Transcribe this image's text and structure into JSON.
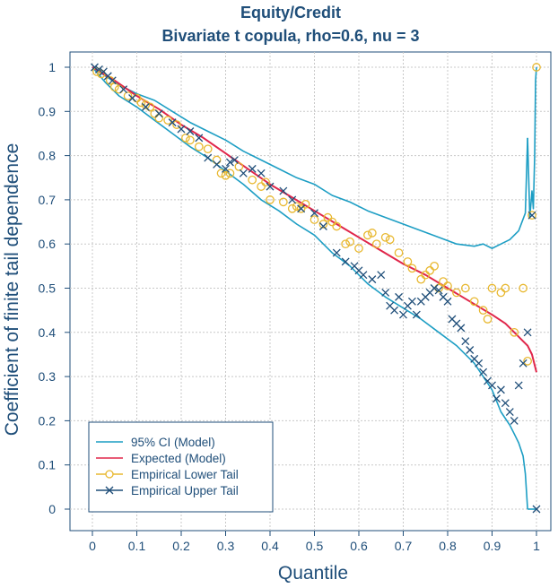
{
  "chart_data": {
    "type": "line",
    "title": "Equity/Credit",
    "subtitle": "Bivariate t copula, rho=0.6, nu = 3",
    "xlabel": "Quantile",
    "ylabel": "Coefficient of finite tail dependence",
    "xlim": [
      0,
      1
    ],
    "ylim": [
      0,
      1
    ],
    "x_ticks": [
      "0",
      "0.1",
      "0.2",
      "0.3",
      "0.4",
      "0.5",
      "0.6",
      "0.7",
      "0.8",
      "0.9",
      "1"
    ],
    "y_ticks": [
      "0",
      "0.1",
      "0.2",
      "0.3",
      "0.4",
      "0.5",
      "0.6",
      "0.7",
      "0.8",
      "0.9",
      "1"
    ],
    "grid": true,
    "legend_position": "bottom-left",
    "colors": {
      "ci": "#1d9ec4",
      "expected": "#e0264a",
      "lower": "#e8b830",
      "upper": "#1f4e79",
      "text": "#1f4e79"
    },
    "series": [
      {
        "name": "95% CI (Model)",
        "kind": "line",
        "color": "#1d9ec4",
        "segments": [
          {
            "x": [
              0.0,
              0.03,
              0.06,
              0.1,
              0.14,
              0.18,
              0.22,
              0.26,
              0.3,
              0.34,
              0.38,
              0.42,
              0.46,
              0.5,
              0.54,
              0.58,
              0.62,
              0.66,
              0.7,
              0.74,
              0.78,
              0.82,
              0.86,
              0.88,
              0.9,
              0.92,
              0.94,
              0.96,
              0.975,
              0.98
            ],
            "y": [
              1.0,
              0.98,
              0.96,
              0.94,
              0.925,
              0.9,
              0.875,
              0.855,
              0.835,
              0.81,
              0.79,
              0.77,
              0.75,
              0.735,
              0.71,
              0.695,
              0.675,
              0.66,
              0.645,
              0.63,
              0.615,
              0.6,
              0.595,
              0.6,
              0.59,
              0.6,
              0.61,
              0.63,
              0.67,
              0.84
            ]
          },
          {
            "x": [
              0.98,
              0.985,
              0.99,
              0.993,
              0.996,
              0.998,
              1.0
            ],
            "y": [
              0.84,
              0.66,
              0.72,
              0.68,
              0.8,
              0.97,
              1.0
            ]
          },
          {
            "x": [
              0.0,
              0.03,
              0.06,
              0.1,
              0.14,
              0.18,
              0.22,
              0.26,
              0.3,
              0.34,
              0.38,
              0.42,
              0.46,
              0.5,
              0.54,
              0.58,
              0.62,
              0.66,
              0.7,
              0.74,
              0.78,
              0.82,
              0.86,
              0.88,
              0.9,
              0.92,
              0.94,
              0.95,
              0.96,
              0.97,
              0.975,
              0.98
            ],
            "y": [
              1.0,
              0.965,
              0.935,
              0.91,
              0.88,
              0.85,
              0.82,
              0.795,
              0.765,
              0.735,
              0.7,
              0.675,
              0.645,
              0.62,
              0.58,
              0.55,
              0.51,
              0.48,
              0.455,
              0.43,
              0.4,
              0.37,
              0.33,
              0.3,
              0.27,
              0.22,
              0.19,
              0.17,
              0.15,
              0.12,
              0.08,
              0.0
            ]
          },
          {
            "x": [
              0.98,
              0.99,
              1.0
            ],
            "y": [
              0.0,
              0.0,
              0.0
            ]
          }
        ]
      },
      {
        "name": "Expected (Model)",
        "kind": "line",
        "color": "#e0264a",
        "x": [
          0.0,
          0.05,
          0.1,
          0.15,
          0.2,
          0.25,
          0.3,
          0.35,
          0.4,
          0.45,
          0.5,
          0.55,
          0.6,
          0.65,
          0.7,
          0.75,
          0.8,
          0.85,
          0.9,
          0.93,
          0.95,
          0.97,
          0.98,
          0.99,
          1.0
        ],
        "y": [
          1.0,
          0.97,
          0.935,
          0.905,
          0.87,
          0.84,
          0.805,
          0.77,
          0.735,
          0.705,
          0.675,
          0.645,
          0.615,
          0.585,
          0.555,
          0.53,
          0.5,
          0.47,
          0.44,
          0.42,
          0.4,
          0.38,
          0.37,
          0.35,
          0.31
        ]
      },
      {
        "name": "Empirical Lower Tail",
        "kind": "points",
        "marker": "circle",
        "color": "#e8b830",
        "x": [
          0.01,
          0.02,
          0.04,
          0.05,
          0.06,
          0.08,
          0.1,
          0.11,
          0.12,
          0.13,
          0.14,
          0.15,
          0.17,
          0.19,
          0.21,
          0.22,
          0.24,
          0.26,
          0.28,
          0.29,
          0.3,
          0.31,
          0.33,
          0.36,
          0.38,
          0.39,
          0.4,
          0.43,
          0.45,
          0.46,
          0.47,
          0.48,
          0.5,
          0.52,
          0.53,
          0.54,
          0.55,
          0.57,
          0.58,
          0.6,
          0.62,
          0.63,
          0.64,
          0.66,
          0.67,
          0.69,
          0.71,
          0.72,
          0.74,
          0.75,
          0.76,
          0.77,
          0.78,
          0.79,
          0.8,
          0.82,
          0.84,
          0.86,
          0.88,
          0.89,
          0.9,
          0.92,
          0.93,
          0.95,
          0.97,
          0.98,
          0.99,
          1.0
        ],
        "y": [
          0.99,
          0.985,
          0.97,
          0.955,
          0.95,
          0.935,
          0.93,
          0.92,
          0.915,
          0.91,
          0.895,
          0.885,
          0.88,
          0.87,
          0.84,
          0.835,
          0.82,
          0.815,
          0.79,
          0.76,
          0.755,
          0.76,
          0.775,
          0.745,
          0.73,
          0.74,
          0.7,
          0.695,
          0.68,
          0.685,
          0.68,
          0.69,
          0.655,
          0.645,
          0.66,
          0.65,
          0.64,
          0.6,
          0.605,
          0.59,
          0.62,
          0.625,
          0.6,
          0.615,
          0.61,
          0.58,
          0.56,
          0.545,
          0.52,
          0.53,
          0.54,
          0.55,
          0.5,
          0.515,
          0.505,
          0.49,
          0.5,
          0.47,
          0.45,
          0.43,
          0.5,
          0.49,
          0.5,
          0.4,
          0.5,
          0.335,
          0.665,
          1.0
        ]
      },
      {
        "name": "Empirical Upper Tail",
        "kind": "points",
        "marker": "x",
        "color": "#1f4e79",
        "x": [
          0.005,
          0.015,
          0.025,
          0.035,
          0.045,
          0.07,
          0.09,
          0.12,
          0.15,
          0.18,
          0.2,
          0.22,
          0.24,
          0.26,
          0.28,
          0.3,
          0.31,
          0.32,
          0.34,
          0.36,
          0.38,
          0.4,
          0.43,
          0.45,
          0.47,
          0.5,
          0.52,
          0.55,
          0.57,
          0.59,
          0.6,
          0.61,
          0.63,
          0.65,
          0.66,
          0.67,
          0.68,
          0.69,
          0.7,
          0.71,
          0.72,
          0.73,
          0.74,
          0.75,
          0.76,
          0.77,
          0.78,
          0.79,
          0.8,
          0.81,
          0.82,
          0.83,
          0.84,
          0.85,
          0.86,
          0.87,
          0.88,
          0.89,
          0.9,
          0.91,
          0.92,
          0.93,
          0.94,
          0.95,
          0.96,
          0.97,
          0.98,
          0.99,
          1.0
        ],
        "y": [
          1.0,
          0.995,
          0.99,
          0.98,
          0.97,
          0.95,
          0.93,
          0.91,
          0.895,
          0.875,
          0.86,
          0.855,
          0.84,
          0.795,
          0.78,
          0.77,
          0.785,
          0.79,
          0.76,
          0.77,
          0.76,
          0.73,
          0.72,
          0.7,
          0.68,
          0.67,
          0.64,
          0.58,
          0.56,
          0.55,
          0.54,
          0.53,
          0.52,
          0.53,
          0.49,
          0.46,
          0.45,
          0.48,
          0.44,
          0.46,
          0.47,
          0.44,
          0.47,
          0.48,
          0.49,
          0.5,
          0.495,
          0.48,
          0.47,
          0.43,
          0.42,
          0.41,
          0.38,
          0.36,
          0.34,
          0.33,
          0.31,
          0.29,
          0.28,
          0.25,
          0.27,
          0.24,
          0.22,
          0.2,
          0.28,
          0.33,
          0.4,
          0.665,
          0.0
        ]
      }
    ]
  }
}
